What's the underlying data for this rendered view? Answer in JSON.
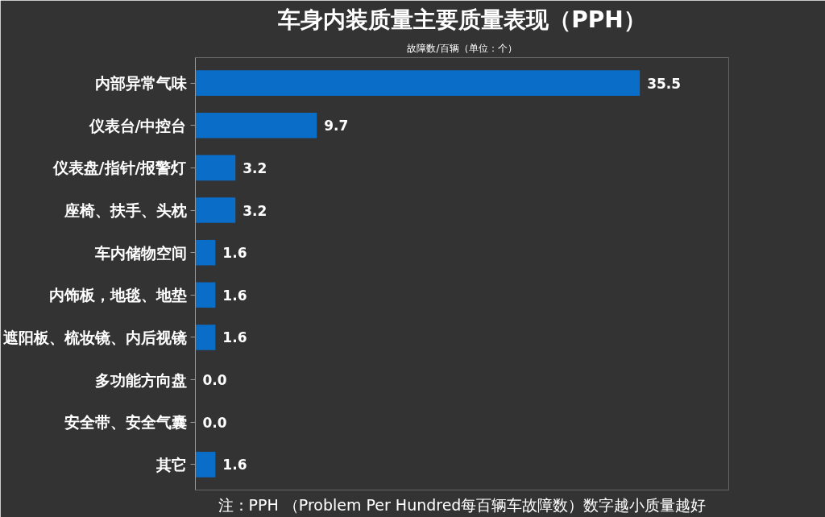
{
  "chart_data": {
    "type": "bar",
    "orientation": "horizontal",
    "title": "车身内装质量主要质量表现（PPH）",
    "subtitle": "故障数/百辆（单位：个）",
    "categories": [
      "内部异常气味",
      "仪表台/中控台",
      "仪表盘/指针/报警灯",
      "座椅、扶手、头枕",
      "车内储物空间",
      "内饰板，地毯、地垫",
      "遮阳板、梳妆镜、内后视镜",
      "多功能方向盘",
      "安全带、安全气囊",
      "其它"
    ],
    "values": [
      35.5,
      9.7,
      3.2,
      3.2,
      1.6,
      1.6,
      1.6,
      0.0,
      0.0,
      1.6
    ],
    "color": "#0a6ec8",
    "value_labels": [
      "35.5",
      "9.7",
      "3.2",
      "3.2",
      "1.6",
      "1.6",
      "1.6",
      "0.0",
      "0.0",
      "1.6"
    ],
    "grid": false,
    "annotations": [
      "注：PPH （Problem Per Hundred每百辆车故障数）数字越小质量越好"
    ]
  }
}
